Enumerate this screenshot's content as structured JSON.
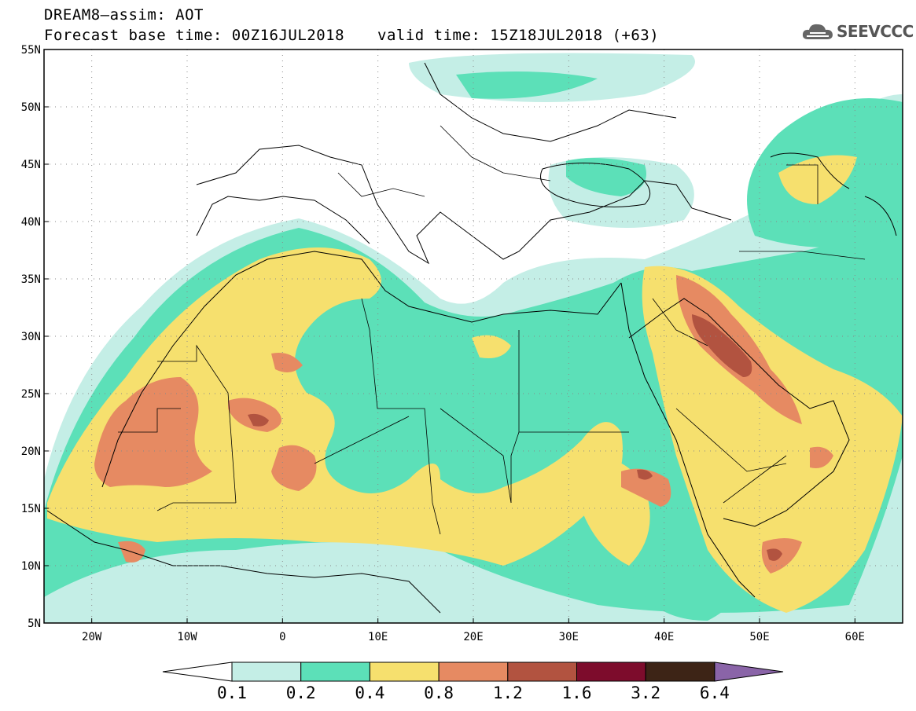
{
  "header": {
    "line1": "DREAM8–assim: AOT",
    "line2": "Forecast base time: 00Z16JUL2018",
    "valid": "valid time: 15Z18JUL2018 (+63)",
    "logo_text": "SEEVCCC"
  },
  "map": {
    "variable": "AOT",
    "lon_range": [
      -25,
      65
    ],
    "lat_range": [
      5,
      55
    ],
    "lat_labels": [
      "55N",
      "50N",
      "45N",
      "40N",
      "35N",
      "30N",
      "25N",
      "20N",
      "15N",
      "10N",
      "5N"
    ],
    "lon_labels": [
      "20W",
      "10W",
      "0",
      "10E",
      "20E",
      "30E",
      "40E",
      "50E",
      "60E"
    ]
  },
  "colorbar": {
    "levels": [
      "0.1",
      "0.2",
      "0.4",
      "0.8",
      "1.2",
      "1.6",
      "3.2",
      "6.4"
    ],
    "colors": [
      "#ffffff",
      "#c4eee6",
      "#5ce0b8",
      "#f6e06e",
      "#e68a62",
      "#b25340",
      "#7d0c2c",
      "#3d2416",
      "#8a64a8"
    ]
  },
  "colors": {
    "aot_01_02": "#c4eee6",
    "aot_02_04": "#5ce0b8",
    "aot_04_08": "#f6e06e",
    "aot_08_12": "#e68a62",
    "aot_12_16": "#b25340",
    "aot_16_32": "#7d0c2c"
  }
}
